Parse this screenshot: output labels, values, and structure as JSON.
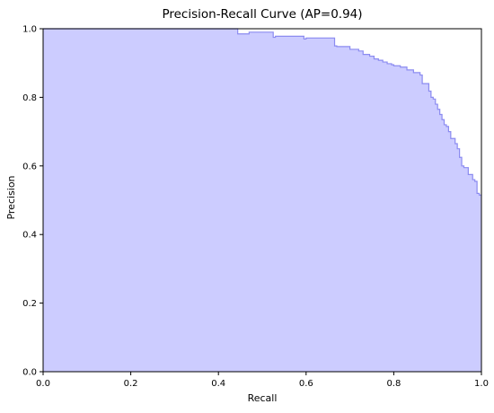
{
  "chart_data": {
    "type": "area",
    "title": "Precision-Recall Curve (AP=0.94)",
    "xlabel": "Recall",
    "ylabel": "Precision",
    "xlim": [
      0.0,
      1.0
    ],
    "ylim": [
      0.0,
      1.0
    ],
    "xticks": [
      "0.0",
      "0.2",
      "0.4",
      "0.6",
      "0.8",
      "1.0"
    ],
    "yticks": [
      "0.0",
      "0.2",
      "0.4",
      "0.6",
      "0.8",
      "1.0"
    ],
    "grid": false,
    "step": "post",
    "series": [
      {
        "recall": [
          0.0,
          0.444,
          0.47,
          0.525,
          0.53,
          0.595,
          0.6,
          0.665,
          0.67,
          0.7,
          0.72,
          0.73,
          0.745,
          0.755,
          0.765,
          0.775,
          0.785,
          0.795,
          0.8,
          0.815,
          0.83,
          0.845,
          0.86,
          0.865,
          0.88,
          0.885,
          0.89,
          0.895,
          0.9,
          0.905,
          0.91,
          0.915,
          0.92,
          0.925,
          0.93,
          0.94,
          0.945,
          0.95,
          0.955,
          0.96,
          0.97,
          0.98,
          0.985,
          0.99,
          0.995,
          1.0
        ],
        "precision": [
          1.0,
          0.985,
          0.99,
          0.975,
          0.978,
          0.97,
          0.973,
          0.95,
          0.948,
          0.94,
          0.935,
          0.925,
          0.92,
          0.912,
          0.908,
          0.903,
          0.898,
          0.895,
          0.892,
          0.888,
          0.88,
          0.872,
          0.865,
          0.84,
          0.818,
          0.8,
          0.795,
          0.78,
          0.765,
          0.75,
          0.735,
          0.72,
          0.715,
          0.7,
          0.68,
          0.665,
          0.65,
          0.625,
          0.6,
          0.595,
          0.575,
          0.56,
          0.555,
          0.52,
          0.515,
          0.515
        ]
      }
    ],
    "colors": {
      "fill": "#ccccff",
      "line": "#8b8bf0",
      "axes": "#000000"
    }
  }
}
